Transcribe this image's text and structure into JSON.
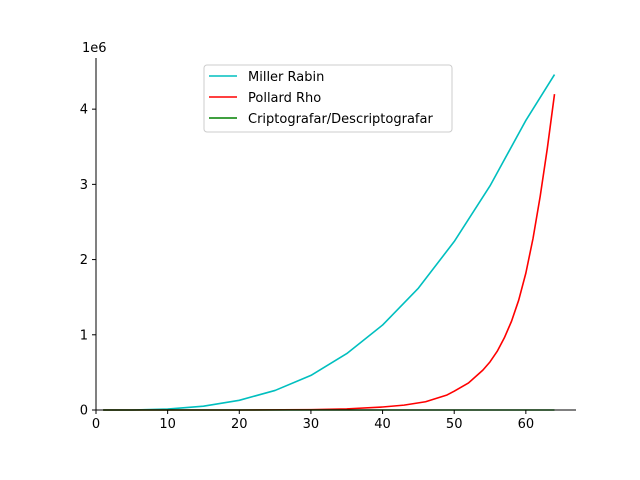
{
  "chart_data": {
    "type": "line",
    "title": "",
    "xlabel": "",
    "ylabel": "",
    "y_scale_label": "1e6",
    "xlim": [
      0,
      67
    ],
    "ylim": [
      0,
      4.68
    ],
    "y_unit_multiplier": 1000000,
    "x_ticks": [
      0,
      10,
      20,
      30,
      40,
      50,
      60
    ],
    "y_ticks": [
      0,
      1,
      2,
      3,
      4
    ],
    "grid": false,
    "legend_position": "upper center",
    "series": [
      {
        "name": "Miller Rabin",
        "color": "#00bfbf",
        "x": [
          1,
          5,
          10,
          15,
          20,
          25,
          30,
          35,
          40,
          45,
          50,
          55,
          60,
          64
        ],
        "y": [
          0.0,
          0.0,
          0.012,
          0.051,
          0.129,
          0.26,
          0.46,
          0.75,
          1.13,
          1.62,
          2.24,
          2.98,
          3.85,
          4.46
        ]
      },
      {
        "name": "Pollard Rho",
        "color": "#ff0000",
        "x": [
          1,
          10,
          20,
          30,
          35,
          40,
          43,
          46,
          49,
          50,
          52,
          54,
          55,
          56,
          57,
          58,
          59,
          60,
          61,
          62,
          63,
          64
        ],
        "y": [
          0,
          0,
          0,
          0.005,
          0.015,
          0.04,
          0.065,
          0.11,
          0.2,
          0.25,
          0.36,
          0.53,
          0.64,
          0.78,
          0.96,
          1.18,
          1.46,
          1.82,
          2.28,
          2.84,
          3.48,
          4.2
        ]
      },
      {
        "name": "Criptografar/Descriptografar",
        "color": "#008000",
        "x": [
          1,
          64
        ],
        "y": [
          0.0,
          0.0
        ]
      }
    ]
  }
}
